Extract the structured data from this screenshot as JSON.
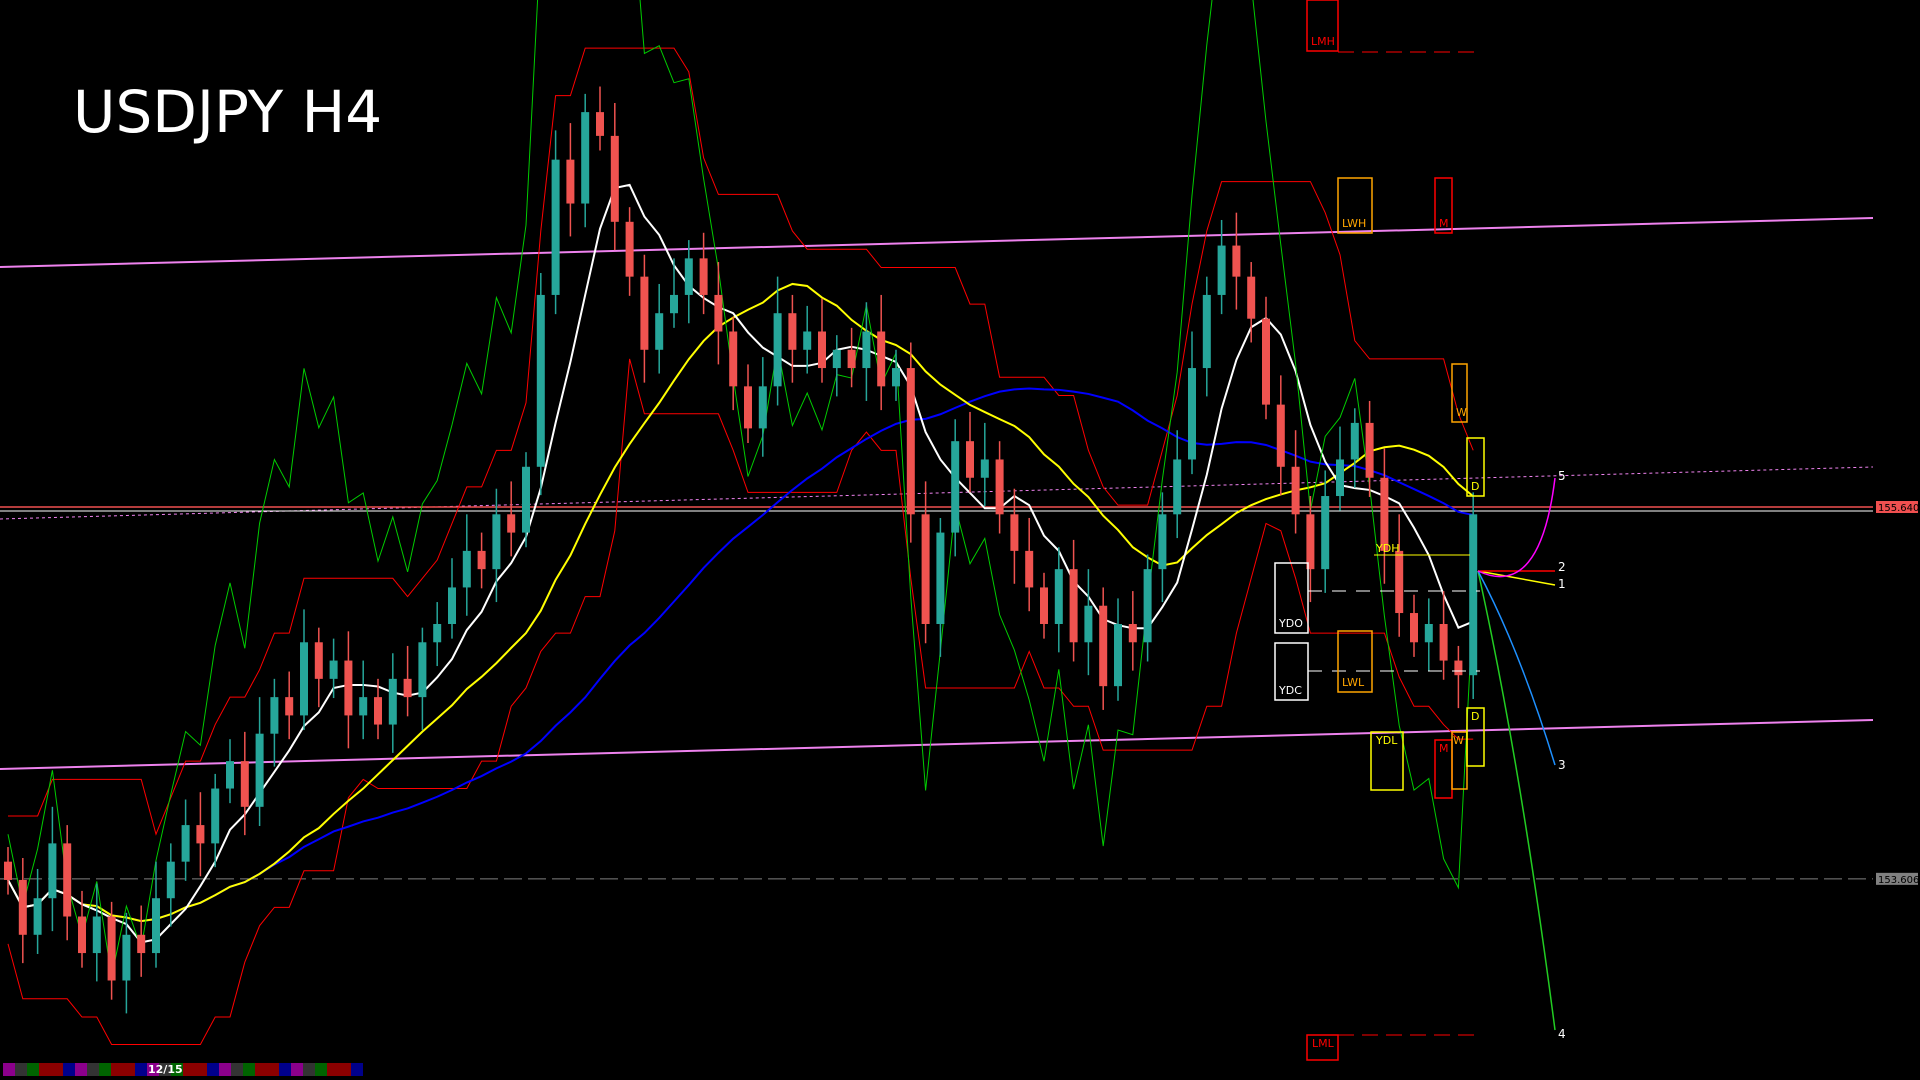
{
  "chart_data": {
    "type": "candlestick",
    "title": "USDJPY H4",
    "symbol": "USDJPY",
    "timeframe": "H4",
    "ylim": [
      152.5,
      158.4
    ],
    "grid": false,
    "closes": [
      153.6,
      153.3,
      153.5,
      153.8,
      153.4,
      153.2,
      153.4,
      153.05,
      153.3,
      153.2,
      153.5,
      153.7,
      153.9,
      153.8,
      154.1,
      154.25,
      154.0,
      154.4,
      154.6,
      154.5,
      154.9,
      154.7,
      154.8,
      154.5,
      154.6,
      154.45,
      154.7,
      154.6,
      154.9,
      155.0,
      155.2,
      155.4,
      155.3,
      155.6,
      155.5,
      155.86,
      156.8,
      157.54,
      157.3,
      157.8,
      157.67,
      157.2,
      156.9,
      156.5,
      156.7,
      156.8,
      157.0,
      156.8,
      156.6,
      156.3,
      156.07,
      156.3,
      156.7,
      156.5,
      156.6,
      156.4,
      156.5,
      156.4,
      156.6,
      156.3,
      156.4,
      155.6,
      155.0,
      155.5,
      156.0,
      155.8,
      155.9,
      155.6,
      155.4,
      155.2,
      155.0,
      155.3,
      154.9,
      155.1,
      154.66,
      155.0,
      154.9,
      155.3,
      155.6,
      155.9,
      156.4,
      156.8,
      157.07,
      156.9,
      156.67,
      156.2,
      155.86,
      155.6,
      155.3,
      155.7,
      155.9,
      156.1,
      155.8,
      155.4,
      155.06,
      154.9,
      155.0,
      154.8,
      154.72,
      155.6
    ],
    "price_labels": [
      {
        "text": "155.640",
        "price": 155.64,
        "color": "#f05050"
      },
      {
        "text": "153.606",
        "price": 153.606,
        "color": "#808080"
      }
    ],
    "level_labels": {
      "lmh": "LMH",
      "lwh": "LWH",
      "m_top": "M",
      "w_top": "W",
      "d_top": "D",
      "ydo": "YDO",
      "ydc": "YDC",
      "ydh": "YDH",
      "lwl": "LWL",
      "ydl": "YDL",
      "m_bottom": "M",
      "w_bottom": "W",
      "d_bottom": "D",
      "lml": "LML"
    },
    "projection_labels": [
      "1",
      "2",
      "3",
      "4",
      "5"
    ],
    "colors": {
      "bull": "#26a69a",
      "bear": "#ef5350",
      "ma_fast": "#ffffff",
      "ma_mid": "#ffff00",
      "ma_slow": "#0000ff",
      "channel": "#ee82ee",
      "envelope": "#ff0000",
      "green_osc": "#00cc00"
    }
  },
  "status_bar": {
    "date_label": "12/15"
  }
}
